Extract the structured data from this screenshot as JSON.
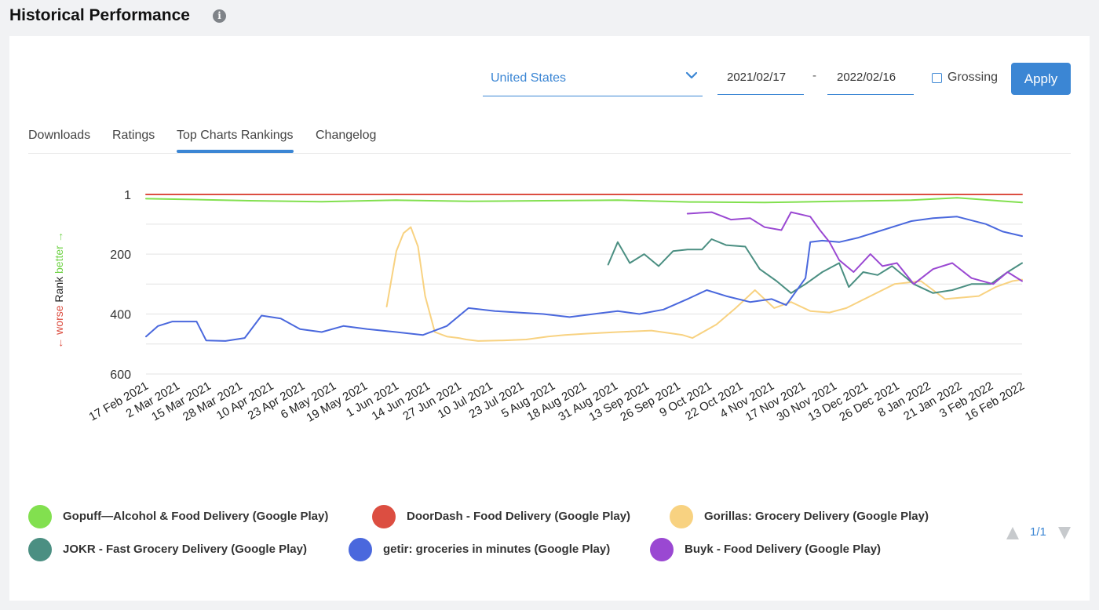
{
  "header": {
    "title": "Historical Performance",
    "info_icon": "info-icon"
  },
  "filters": {
    "country": "United States",
    "date_from": "2021/02/17",
    "date_separator": "-",
    "date_to": "2022/02/16",
    "grossing_label": "Grossing",
    "grossing_checked": false,
    "apply_label": "Apply"
  },
  "tabs": [
    {
      "label": "Downloads",
      "active": false
    },
    {
      "label": "Ratings",
      "active": false
    },
    {
      "label": "Top Charts Rankings",
      "active": true
    },
    {
      "label": "Changelog",
      "active": false
    }
  ],
  "pager": {
    "text": "1/1"
  },
  "chart_data": {
    "type": "line",
    "title": "",
    "ylabel": {
      "worse": "← worse",
      "rank": "Rank",
      "better": "better →"
    },
    "y_inverted": true,
    "ylim": [
      1,
      600
    ],
    "yticks": [
      "1",
      "200",
      "400",
      "600"
    ],
    "grid": true,
    "x_start": "2021-02-17",
    "xticks": [
      "17 Feb 2021",
      "2 Mar 2021",
      "15 Mar 2021",
      "28 Mar 2021",
      "10 Apr 2021",
      "23 Apr 2021",
      "6 May 2021",
      "19 May 2021",
      "1 Jun 2021",
      "14 Jun 2021",
      "27 Jun 2021",
      "10 Jul 2021",
      "23 Jul 2021",
      "5 Aug 2021",
      "18 Aug 2021",
      "31 Aug 2021",
      "13 Sep 2021",
      "26 Sep 2021",
      "9 Oct 2021",
      "22 Oct 2021",
      "4 Nov 2021",
      "17 Nov 2021",
      "30 Nov 2021",
      "13 Dec 2021",
      "26 Dec 2021",
      "8 Jan 2022",
      "21 Jan 2022",
      "3 Feb 2022",
      "16 Feb 2022"
    ],
    "legend_position": "bottom",
    "series": [
      {
        "name": "Gopuff—Alcohol & Food Delivery (Google Play)",
        "color": "#82e04f",
        "points": [
          [
            "2021-02-17",
            15
          ],
          [
            "2021-03-10",
            18
          ],
          [
            "2021-04-01",
            22
          ],
          [
            "2021-05-01",
            25
          ],
          [
            "2021-06-01",
            20
          ],
          [
            "2021-07-01",
            24
          ],
          [
            "2021-08-01",
            22
          ],
          [
            "2021-09-01",
            20
          ],
          [
            "2021-10-01",
            26
          ],
          [
            "2021-11-01",
            28
          ],
          [
            "2021-12-01",
            24
          ],
          [
            "2022-01-01",
            20
          ],
          [
            "2022-01-20",
            12
          ],
          [
            "2022-02-16",
            28
          ]
        ]
      },
      {
        "name": "DoorDash - Food Delivery (Google Play)",
        "color": "#dc4e41",
        "points": [
          [
            "2021-02-17",
            1
          ],
          [
            "2022-02-16",
            1
          ]
        ]
      },
      {
        "name": "Gorillas: Grocery Delivery (Google Play)",
        "color": "#f8d281",
        "points": [
          [
            "2021-05-28",
            375
          ],
          [
            "2021-06-01",
            190
          ],
          [
            "2021-06-04",
            130
          ],
          [
            "2021-06-07",
            110
          ],
          [
            "2021-06-10",
            175
          ],
          [
            "2021-06-13",
            340
          ],
          [
            "2021-06-17",
            460
          ],
          [
            "2021-06-22",
            475
          ],
          [
            "2021-06-27",
            480
          ],
          [
            "2021-06-30",
            485
          ],
          [
            "2021-07-05",
            490
          ],
          [
            "2021-07-15",
            488
          ],
          [
            "2021-07-25",
            485
          ],
          [
            "2021-08-03",
            475
          ],
          [
            "2021-08-10",
            470
          ],
          [
            "2021-08-20",
            465
          ],
          [
            "2021-09-01",
            460
          ],
          [
            "2021-09-15",
            455
          ],
          [
            "2021-09-28",
            470
          ],
          [
            "2021-10-02",
            480
          ],
          [
            "2021-10-12",
            435
          ],
          [
            "2021-10-20",
            380
          ],
          [
            "2021-10-28",
            320
          ],
          [
            "2021-11-05",
            380
          ],
          [
            "2021-11-12",
            360
          ],
          [
            "2021-11-20",
            390
          ],
          [
            "2021-11-28",
            395
          ],
          [
            "2021-12-05",
            380
          ],
          [
            "2021-12-15",
            340
          ],
          [
            "2021-12-25",
            300
          ],
          [
            "2022-01-05",
            290
          ],
          [
            "2022-01-15",
            350
          ],
          [
            "2022-01-22",
            345
          ],
          [
            "2022-01-29",
            340
          ],
          [
            "2022-02-05",
            310
          ],
          [
            "2022-02-12",
            290
          ],
          [
            "2022-02-16",
            285
          ]
        ]
      },
      {
        "name": "JOKR - Fast Grocery Delivery (Google Play)",
        "color": "#4b8f82",
        "points": [
          [
            "2021-08-28",
            235
          ],
          [
            "2021-09-01",
            160
          ],
          [
            "2021-09-06",
            230
          ],
          [
            "2021-09-12",
            200
          ],
          [
            "2021-09-18",
            240
          ],
          [
            "2021-09-24",
            190
          ],
          [
            "2021-09-30",
            185
          ],
          [
            "2021-10-06",
            185
          ],
          [
            "2021-10-10",
            150
          ],
          [
            "2021-10-16",
            170
          ],
          [
            "2021-10-24",
            175
          ],
          [
            "2021-10-30",
            250
          ],
          [
            "2021-11-06",
            290
          ],
          [
            "2021-11-12",
            330
          ],
          [
            "2021-11-18",
            300
          ],
          [
            "2021-11-25",
            260
          ],
          [
            "2021-12-02",
            230
          ],
          [
            "2021-12-06",
            310
          ],
          [
            "2021-12-12",
            260
          ],
          [
            "2021-12-18",
            270
          ],
          [
            "2021-12-24",
            240
          ],
          [
            "2022-01-02",
            300
          ],
          [
            "2022-01-10",
            330
          ],
          [
            "2022-01-18",
            320
          ],
          [
            "2022-01-26",
            300
          ],
          [
            "2022-02-03",
            300
          ],
          [
            "2022-02-10",
            260
          ],
          [
            "2022-02-16",
            230
          ]
        ]
      },
      {
        "name": "getir: groceries in minutes (Google Play)",
        "color": "#4a68dd",
        "points": [
          [
            "2021-02-17",
            475
          ],
          [
            "2021-02-22",
            440
          ],
          [
            "2021-02-28",
            425
          ],
          [
            "2021-03-10",
            425
          ],
          [
            "2021-03-14",
            488
          ],
          [
            "2021-03-22",
            490
          ],
          [
            "2021-03-30",
            480
          ],
          [
            "2021-04-06",
            405
          ],
          [
            "2021-04-14",
            415
          ],
          [
            "2021-04-22",
            450
          ],
          [
            "2021-05-01",
            460
          ],
          [
            "2021-05-10",
            440
          ],
          [
            "2021-05-20",
            450
          ],
          [
            "2021-06-01",
            460
          ],
          [
            "2021-06-12",
            470
          ],
          [
            "2021-06-22",
            440
          ],
          [
            "2021-07-01",
            380
          ],
          [
            "2021-07-12",
            390
          ],
          [
            "2021-07-22",
            395
          ],
          [
            "2021-08-01",
            400
          ],
          [
            "2021-08-12",
            410
          ],
          [
            "2021-08-22",
            400
          ],
          [
            "2021-09-01",
            390
          ],
          [
            "2021-09-10",
            400
          ],
          [
            "2021-09-20",
            385
          ],
          [
            "2021-09-30",
            350
          ],
          [
            "2021-10-08",
            320
          ],
          [
            "2021-10-16",
            340
          ],
          [
            "2021-10-26",
            360
          ],
          [
            "2021-11-04",
            350
          ],
          [
            "2021-11-10",
            370
          ],
          [
            "2021-11-18",
            280
          ],
          [
            "2021-11-20",
            160
          ],
          [
            "2021-11-25",
            155
          ],
          [
            "2021-12-02",
            160
          ],
          [
            "2021-12-10",
            145
          ],
          [
            "2021-12-20",
            120
          ],
          [
            "2022-01-01",
            90
          ],
          [
            "2022-01-10",
            80
          ],
          [
            "2022-01-20",
            75
          ],
          [
            "2022-02-01",
            100
          ],
          [
            "2022-02-08",
            125
          ],
          [
            "2022-02-16",
            140
          ]
        ]
      },
      {
        "name": "Buyk - Food Delivery (Google Play)",
        "color": "#9a48d2",
        "points": [
          [
            "2021-09-30",
            65
          ],
          [
            "2021-10-10",
            60
          ],
          [
            "2021-10-18",
            85
          ],
          [
            "2021-10-26",
            80
          ],
          [
            "2021-11-01",
            110
          ],
          [
            "2021-11-08",
            120
          ],
          [
            "2021-11-12",
            60
          ],
          [
            "2021-11-20",
            75
          ],
          [
            "2021-11-24",
            120
          ],
          [
            "2021-11-28",
            160
          ],
          [
            "2021-12-02",
            220
          ],
          [
            "2021-12-08",
            260
          ],
          [
            "2021-12-15",
            200
          ],
          [
            "2021-12-20",
            240
          ],
          [
            "2021-12-26",
            230
          ],
          [
            "2022-01-02",
            300
          ],
          [
            "2022-01-10",
            250
          ],
          [
            "2022-01-18",
            230
          ],
          [
            "2022-01-26",
            280
          ],
          [
            "2022-02-04",
            300
          ],
          [
            "2022-02-10",
            260
          ],
          [
            "2022-02-16",
            290
          ]
        ]
      }
    ]
  }
}
